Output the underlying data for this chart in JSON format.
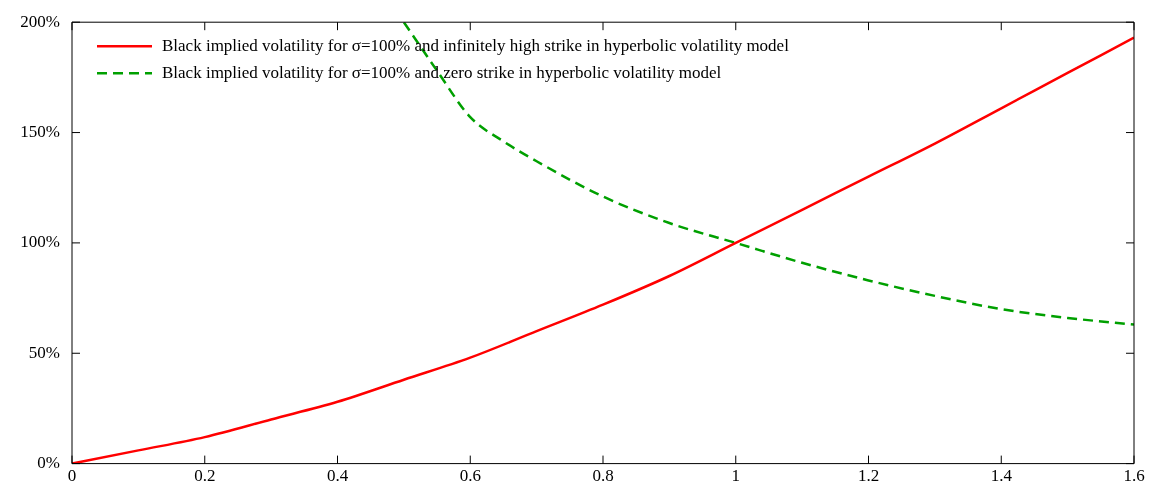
{
  "chart_data": {
    "type": "line",
    "xlim": [
      0,
      1.6
    ],
    "xticks": [
      0,
      0.2,
      0.4,
      0.6,
      0.8,
      1,
      1.2,
      1.4,
      1.6
    ],
    "ylim": [
      0,
      200
    ],
    "yticks": [
      {
        "value": 0,
        "label": "0%"
      },
      {
        "value": 50,
        "label": "50%"
      },
      {
        "value": 100,
        "label": "100%"
      },
      {
        "value": 150,
        "label": "150%"
      },
      {
        "value": 200,
        "label": "200%"
      }
    ],
    "grid": false,
    "legend": "top left",
    "marker": "none",
    "series": [
      {
        "name": "Black implied volatility for σ=100% and infinitely high strike in hyperbolic volatility model",
        "color": "#ff0000",
        "line_style": "solid",
        "x": [
          0,
          0.1,
          0.2,
          0.3,
          0.4,
          0.5,
          0.6,
          0.7,
          0.8,
          0.9,
          1,
          1.1,
          1.2,
          1.3,
          1.4,
          1.5,
          1.6
        ],
        "values": [
          0,
          6,
          12,
          20,
          28,
          38,
          48,
          60,
          72,
          85,
          100,
          115,
          130,
          145,
          161,
          177,
          193
        ]
      },
      {
        "name": "Black implied volatility for σ=100% and zero strike in hyperbolic volatility model",
        "color": "#00a000",
        "line_style": "dashed",
        "x": [
          0.5,
          0.55,
          0.6,
          0.65,
          0.7,
          0.8,
          0.9,
          1,
          1.1,
          1.2,
          1.3,
          1.4,
          1.5,
          1.6
        ],
        "values": [
          200,
          178,
          157,
          146,
          137,
          121,
          109,
          100,
          91,
          83,
          76,
          70,
          66,
          63
        ]
      }
    ]
  }
}
